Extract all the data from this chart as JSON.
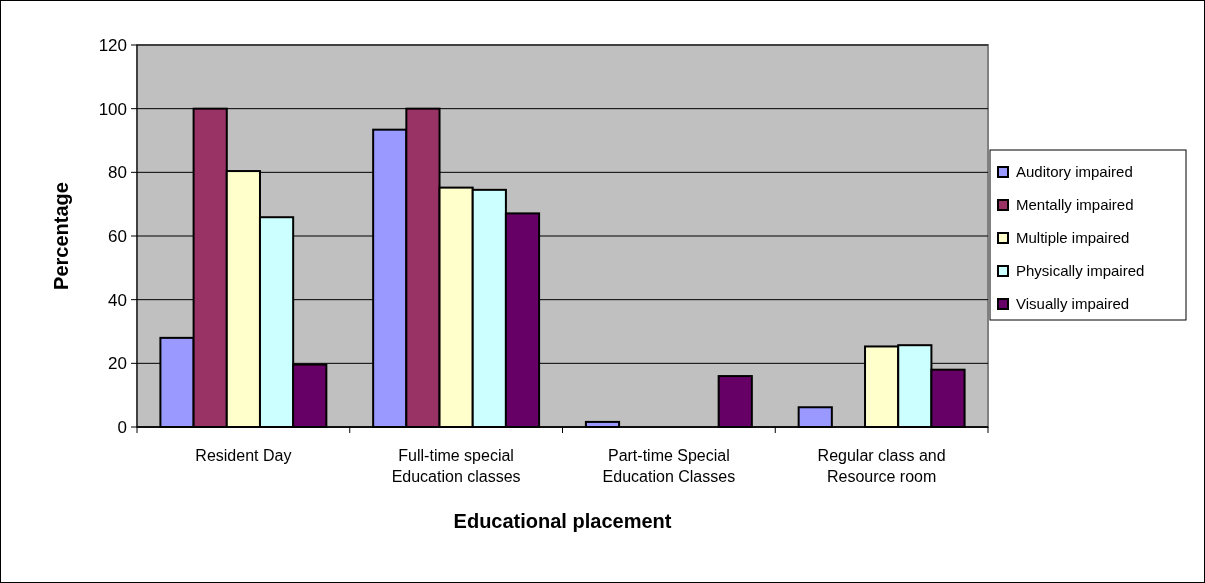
{
  "chart_data": {
    "type": "bar",
    "xlabel": "Educational placement",
    "ylabel": "Percentage",
    "categories": [
      "Resident Day",
      "Full-time special Education classes",
      "Part-time Special Education Classes",
      "Regular class and Resource room"
    ],
    "series": [
      {
        "name": "Auditory impaired",
        "color": "#9999ff",
        "values": [
          28,
          93.4,
          1.6,
          6.2
        ]
      },
      {
        "name": "Mentally impaired",
        "color": "#993366",
        "values": [
          100,
          100,
          0,
          0
        ]
      },
      {
        "name": "Multiple impaired",
        "color": "#ffffcc",
        "values": [
          80.4,
          75.2,
          0,
          25.3
        ]
      },
      {
        "name": "Physically impaired",
        "color": "#ccffff",
        "values": [
          65.9,
          74.5,
          0,
          25.7
        ]
      },
      {
        "name": "Visually impaired",
        "color": "#660066",
        "values": [
          19.6,
          67.1,
          16,
          18
        ]
      }
    ],
    "ylim": [
      0,
      120
    ],
    "yticks": [
      0,
      20,
      40,
      60,
      80,
      100,
      120
    ],
    "grid": "y",
    "legend": "right"
  }
}
